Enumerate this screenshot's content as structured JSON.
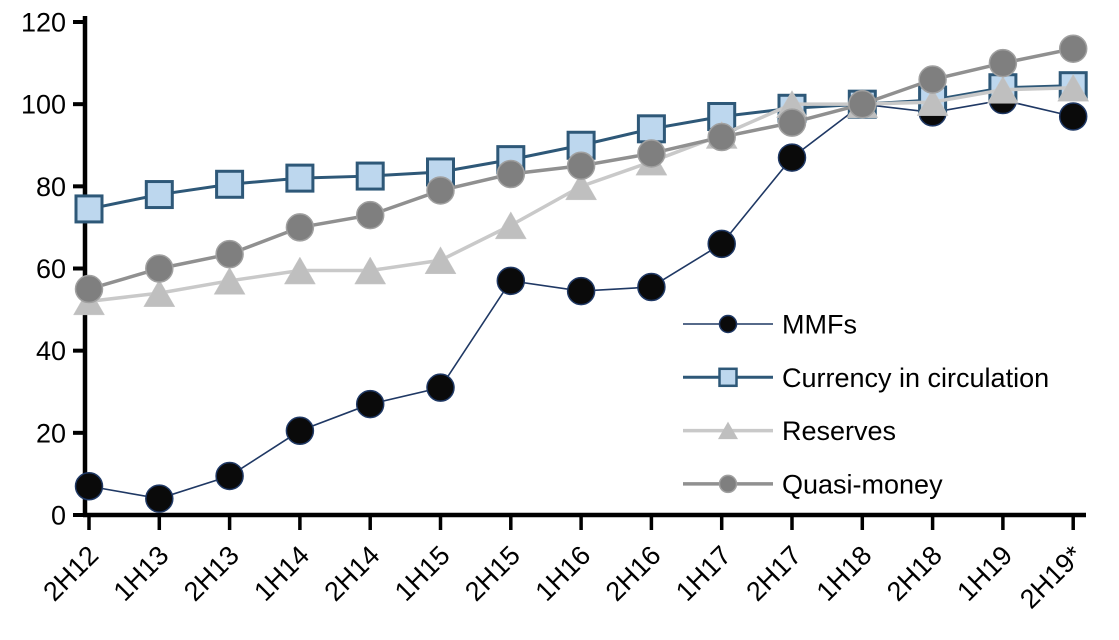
{
  "chart_data": {
    "type": "line",
    "title": "",
    "xlabel": "",
    "ylabel": "",
    "grid": false,
    "legend_position": "inside-right",
    "ylim": [
      0,
      120
    ],
    "yticks": [
      0,
      20,
      40,
      60,
      80,
      100,
      120
    ],
    "categories": [
      "2H12",
      "1H13",
      "2H13",
      "1H14",
      "2H14",
      "1H15",
      "2H15",
      "1H16",
      "2H16",
      "1H17",
      "2H17",
      "1H18",
      "2H18",
      "1H19",
      "2H19*"
    ],
    "series": [
      {
        "name": "MMFs",
        "marker": "circle",
        "line_color": "#1f3864",
        "marker_fill": "#0a0a0a",
        "marker_stroke": "#1f3864",
        "values": [
          7,
          4,
          9.5,
          20.5,
          27,
          31,
          57,
          54.5,
          55.5,
          66,
          87,
          100,
          98,
          101,
          97
        ]
      },
      {
        "name": "Currency in circulation",
        "marker": "square",
        "line_color": "#2e5878",
        "marker_fill": "#bdd7ee",
        "marker_stroke": "#2e5878",
        "values": [
          74.5,
          78,
          80.5,
          82,
          82.5,
          83.5,
          86.5,
          90,
          94,
          97,
          99,
          100,
          101,
          104,
          104.5
        ]
      },
      {
        "name": "Reserves",
        "marker": "triangle",
        "line_color": "#c9c9c9",
        "marker_fill": "#bfbfbf",
        "marker_stroke": "#c9c9c9",
        "values": [
          52,
          54,
          57,
          59.5,
          59.5,
          62,
          70.5,
          80,
          86,
          92.5,
          100,
          100,
          100.5,
          103.5,
          104
        ]
      },
      {
        "name": "Quasi-money",
        "marker": "circle",
        "line_color": "#909090",
        "marker_fill": "#7f7f7f",
        "marker_stroke": "#a0a0a0",
        "values": [
          55,
          60,
          63.5,
          70,
          73,
          79,
          83,
          85,
          88,
          92,
          95.5,
          100,
          106,
          110,
          113.5
        ]
      }
    ],
    "axis_color": "#000000",
    "text_color": "#000000"
  },
  "legend": {
    "items": [
      "MMFs",
      "Currency in circulation",
      "Reserves",
      "Quasi-money"
    ]
  }
}
